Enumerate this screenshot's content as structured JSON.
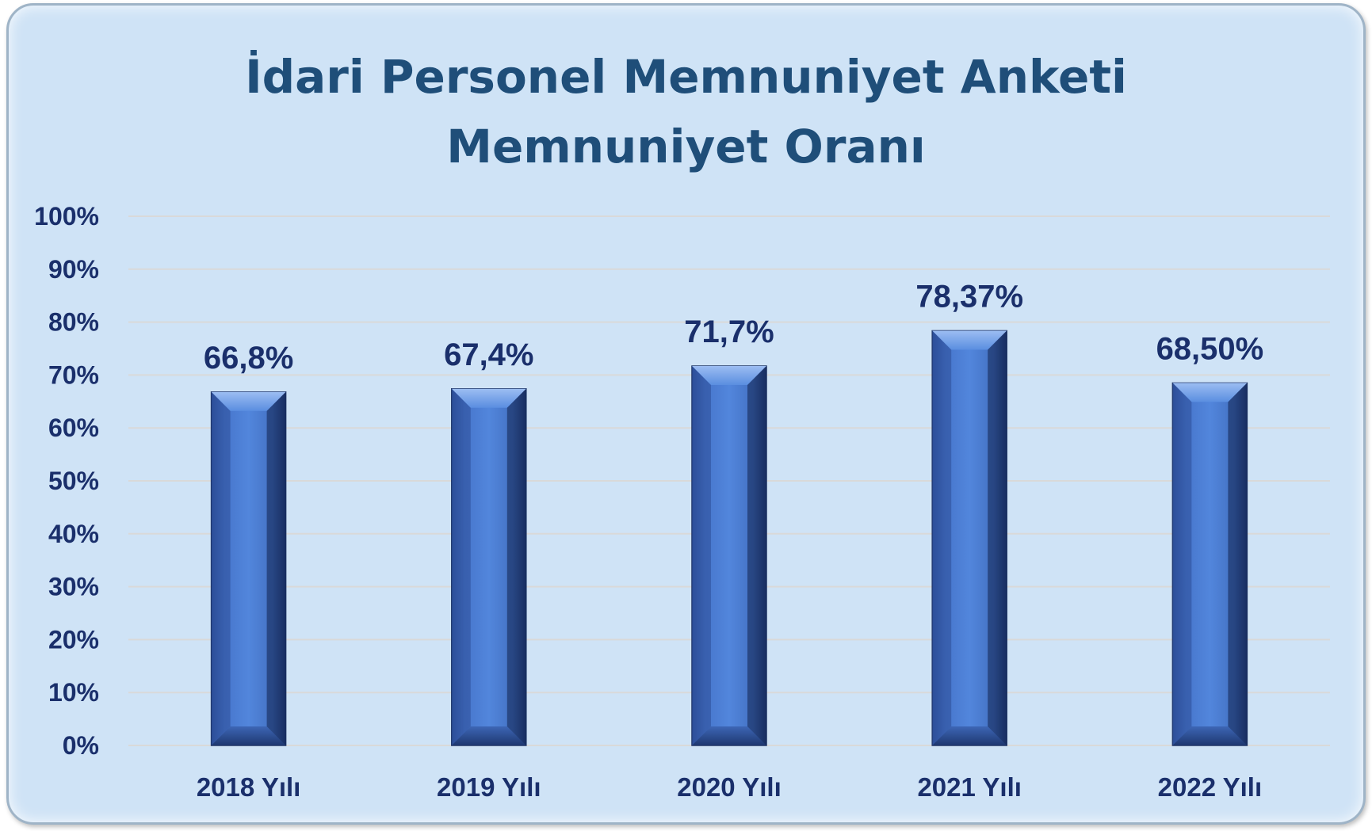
{
  "chart_data": {
    "type": "bar",
    "title": [
      "İdari Personel Memnuniyet Anketi",
      "Memnuniyet Oranı"
    ],
    "categories": [
      "2018 Yılı",
      "2019 Yılı",
      "2020 Yılı",
      "2021 Yılı",
      "2022 Yılı"
    ],
    "values": [
      66.8,
      67.4,
      71.7,
      78.37,
      68.5
    ],
    "data_labels": [
      "66,8%",
      "67,4%",
      "71,7%",
      "78,37%",
      "68,50%"
    ],
    "yticks": [
      "0%",
      "10%",
      "20%",
      "30%",
      "40%",
      "50%",
      "60%",
      "70%",
      "80%",
      "90%",
      "100%"
    ],
    "ylim": [
      0,
      100
    ],
    "grid": true,
    "legend": "none",
    "colors": {
      "bar": "#4a7bd0",
      "text": "#1a2f6b",
      "title": "#1f4e79",
      "background": "#cfe3f6"
    }
  }
}
